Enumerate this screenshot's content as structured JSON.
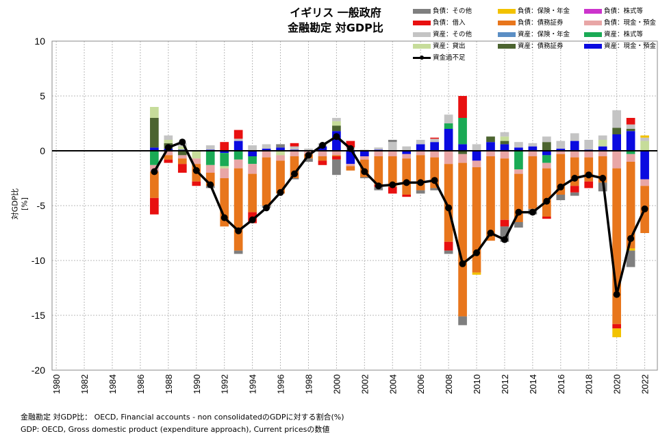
{
  "title_line1": "イギリス 一般政府",
  "title_line2": "金融勘定 対GDP比",
  "ylabel": "対GDP比 [%]",
  "footer_line1": "金融勘定 対GDP比： OECD, Financial accounts - non consolidatedのGDPに対する割合(%)",
  "footer_line2": "GDP: OECD, Gross domestic product (expenditure approach), Current pricesの数値",
  "legend": [
    {
      "label": "負債：その他",
      "color": "#7f7f7f"
    },
    {
      "label": "負債：保険・年金",
      "color": "#f2c200"
    },
    {
      "label": "負債：株式等",
      "color": "#cc33cc"
    },
    {
      "label": "負債：借入",
      "color": "#e81010"
    },
    {
      "label": "負債：債務証券",
      "color": "#e8761c"
    },
    {
      "label": "負債：現金・預金",
      "color": "#e8a6a6"
    },
    {
      "label": "資産：その他",
      "color": "#c4c4c4"
    },
    {
      "label": "資産：保険・年金",
      "color": "#5b8ec4"
    },
    {
      "label": "資産：株式等",
      "color": "#1aaa55"
    },
    {
      "label": "資産：貸出",
      "color": "#c6dc9a"
    },
    {
      "label": "資産：債務証券",
      "color": "#4c6430"
    },
    {
      "label": "資産：現金・預金",
      "color": "#0a0ae0"
    },
    {
      "label": "資金過不足",
      "color": "#000000"
    }
  ],
  "chart_data": {
    "type": "bar",
    "stacked": true,
    "x_ticks": [
      "1980",
      "1982",
      "1984",
      "1986",
      "1988",
      "1990",
      "1992",
      "1994",
      "1996",
      "1998",
      "2000",
      "2002",
      "2004",
      "2006",
      "2008",
      "2010",
      "2012",
      "2014",
      "2016",
      "2018",
      "2020",
      "2022"
    ],
    "ylim": [
      -20,
      10
    ],
    "y_ticks": [
      10,
      5,
      0,
      -5,
      -10,
      -15,
      -20
    ],
    "grid": true,
    "years": [
      1987,
      1988,
      1989,
      1990,
      1991,
      1992,
      1993,
      1994,
      1995,
      1996,
      1997,
      1998,
      1999,
      2000,
      2001,
      2002,
      2003,
      2004,
      2005,
      2006,
      2007,
      2008,
      2009,
      2010,
      2011,
      2012,
      2013,
      2014,
      2015,
      2016,
      2017,
      2018,
      2019,
      2020,
      2021,
      2022
    ],
    "series": [
      {
        "name": "資産：現金・預金",
        "values": [
          0.3,
          0.2,
          0.1,
          0.0,
          0.1,
          -0.2,
          0.9,
          -0.5,
          0.2,
          0.3,
          0.1,
          0.0,
          0.4,
          1.8,
          -1.2,
          -0.5,
          0.1,
          0.0,
          -0.3,
          0.6,
          0.8,
          2.0,
          0.6,
          -0.9,
          0.8,
          0.6,
          0.3,
          0.4,
          -0.4,
          0.2,
          0.9,
          0.1,
          0.4,
          1.5,
          1.8,
          -2.6
        ]
      },
      {
        "name": "資産：債務証券",
        "values": [
          2.7,
          0.5,
          -0.4,
          0.0,
          0.0,
          0.0,
          0.0,
          0.0,
          0.0,
          0.0,
          0.0,
          0.0,
          0.0,
          0.5,
          0.0,
          0.0,
          0.0,
          0.0,
          0.0,
          0.0,
          0.0,
          0.0,
          -0.3,
          0.0,
          0.5,
          0.3,
          0.0,
          0.0,
          0.8,
          0.0,
          0.0,
          0.0,
          0.0,
          0.6,
          0.2,
          0.0
        ]
      },
      {
        "name": "資産：株式等",
        "values": [
          -1.3,
          0.0,
          0.0,
          0.0,
          -1.3,
          -1.2,
          -0.8,
          -0.7,
          0.0,
          0.0,
          0.0,
          0.0,
          0.0,
          0.0,
          0.0,
          0.0,
          0.0,
          0.0,
          0.0,
          0.0,
          0.0,
          0.5,
          2.4,
          0.0,
          0.0,
          0.0,
          -1.7,
          0.0,
          -0.7,
          0.0,
          0.0,
          0.0,
          0.0,
          0.0,
          -0.3,
          0.0
        ]
      },
      {
        "name": "資産：貸出",
        "values": [
          1.0,
          0.3,
          0.3,
          -0.7,
          0.0,
          -0.2,
          0.0,
          0.0,
          0.0,
          -0.4,
          0.0,
          0.0,
          0.0,
          0.4,
          0.0,
          0.0,
          0.0,
          0.0,
          0.0,
          0.0,
          0.0,
          0.0,
          0.0,
          0.0,
          0.0,
          0.4,
          0.0,
          0.0,
          0.0,
          0.0,
          0.0,
          0.0,
          0.6,
          0.0,
          0.0,
          0.9
        ]
      },
      {
        "name": "資産：その他",
        "values": [
          0.0,
          0.4,
          0.3,
          0.0,
          0.4,
          0.0,
          0.2,
          0.5,
          0.4,
          0.0,
          0.3,
          0.2,
          0.3,
          0.3,
          0.3,
          0.1,
          0.2,
          0.8,
          0.4,
          0.4,
          0.3,
          0.8,
          0.0,
          0.6,
          0.0,
          0.4,
          0.5,
          0.3,
          0.5,
          0.7,
          0.7,
          0.9,
          0.4,
          1.6,
          0.4,
          0.3
        ]
      },
      {
        "name": "負債：現金・預金",
        "values": [
          -0.6,
          -0.4,
          -0.3,
          -0.5,
          -0.7,
          -0.9,
          -0.8,
          -0.9,
          -0.6,
          -0.5,
          -0.5,
          -0.3,
          -0.5,
          -0.4,
          -0.2,
          -0.3,
          -0.5,
          -0.5,
          -0.4,
          -0.4,
          -0.6,
          -1.2,
          -0.8,
          -0.6,
          -0.5,
          -0.7,
          -0.4,
          -0.5,
          -0.5,
          -0.3,
          -0.6,
          -0.6,
          -0.5,
          -1.6,
          -0.7,
          -0.6
        ]
      },
      {
        "name": "負債：債務証券",
        "values": [
          -2.4,
          -0.4,
          -0.5,
          -1.6,
          -1.2,
          -4.4,
          -7.5,
          -3.5,
          -4.4,
          -3.0,
          -2.0,
          -0.4,
          -0.4,
          -0.1,
          -0.4,
          -1.6,
          -2.6,
          -2.8,
          -3.3,
          -3.2,
          -2.8,
          -7.1,
          -14.0,
          -9.6,
          -7.7,
          -5.6,
          -4.4,
          -4.8,
          -4.4,
          -3.7,
          -2.6,
          -2.2,
          -2.4,
          -14.2,
          -7.9,
          -4.3
        ]
      },
      {
        "name": "負債：借入",
        "values": [
          -1.5,
          -0.3,
          -0.8,
          -0.4,
          0.0,
          0.8,
          0.8,
          -1.0,
          0.0,
          0.0,
          0.3,
          0.0,
          -0.4,
          -0.3,
          0.6,
          0.0,
          -0.2,
          -0.6,
          -0.2,
          0.0,
          0.1,
          -0.8,
          2.0,
          0.0,
          0.0,
          -0.6,
          0.0,
          0.0,
          -0.2,
          0.0,
          -0.6,
          -0.6,
          0.0,
          -0.4,
          0.6,
          0.0
        ]
      },
      {
        "name": "負債：保険・年金",
        "values": [
          0.0,
          0.0,
          0.0,
          0.0,
          0.0,
          0.0,
          0.0,
          0.0,
          0.0,
          0.0,
          0.0,
          0.0,
          0.0,
          0.0,
          0.0,
          0.0,
          0.0,
          0.0,
          0.0,
          0.0,
          0.0,
          0.0,
          0.0,
          -0.2,
          0.0,
          0.0,
          0.0,
          0.0,
          0.0,
          0.0,
          0.0,
          0.0,
          0.0,
          -0.8,
          -0.2,
          0.2
        ]
      },
      {
        "name": "負債：その他",
        "values": [
          0.0,
          0.0,
          0.0,
          0.0,
          -0.2,
          0.0,
          -0.3,
          0.0,
          -0.2,
          0.3,
          -0.1,
          -0.3,
          0.0,
          -1.4,
          0.0,
          -0.1,
          -0.3,
          0.2,
          0.0,
          -0.3,
          -0.2,
          -0.3,
          -0.8,
          0.0,
          0.0,
          -1.4,
          -0.5,
          -0.5,
          0.0,
          -0.5,
          -0.3,
          0.0,
          -0.8,
          0.0,
          -1.5,
          0.0
        ]
      }
    ],
    "line": {
      "name": "資金過不足",
      "values": [
        -1.9,
        0.3,
        0.8,
        -1.8,
        -3.1,
        -6.1,
        -7.3,
        -6.3,
        -5.2,
        -3.8,
        -2.1,
        -0.4,
        0.5,
        1.3,
        0.2,
        -1.9,
        -3.2,
        -3.1,
        -2.9,
        -2.9,
        -2.7,
        -5.2,
        -10.3,
        -9.3,
        -7.5,
        -8.1,
        -5.6,
        -5.6,
        -4.6,
        -3.3,
        -2.5,
        -2.2,
        -2.5,
        -13.1,
        -8.0,
        -5.3
      ]
    }
  }
}
